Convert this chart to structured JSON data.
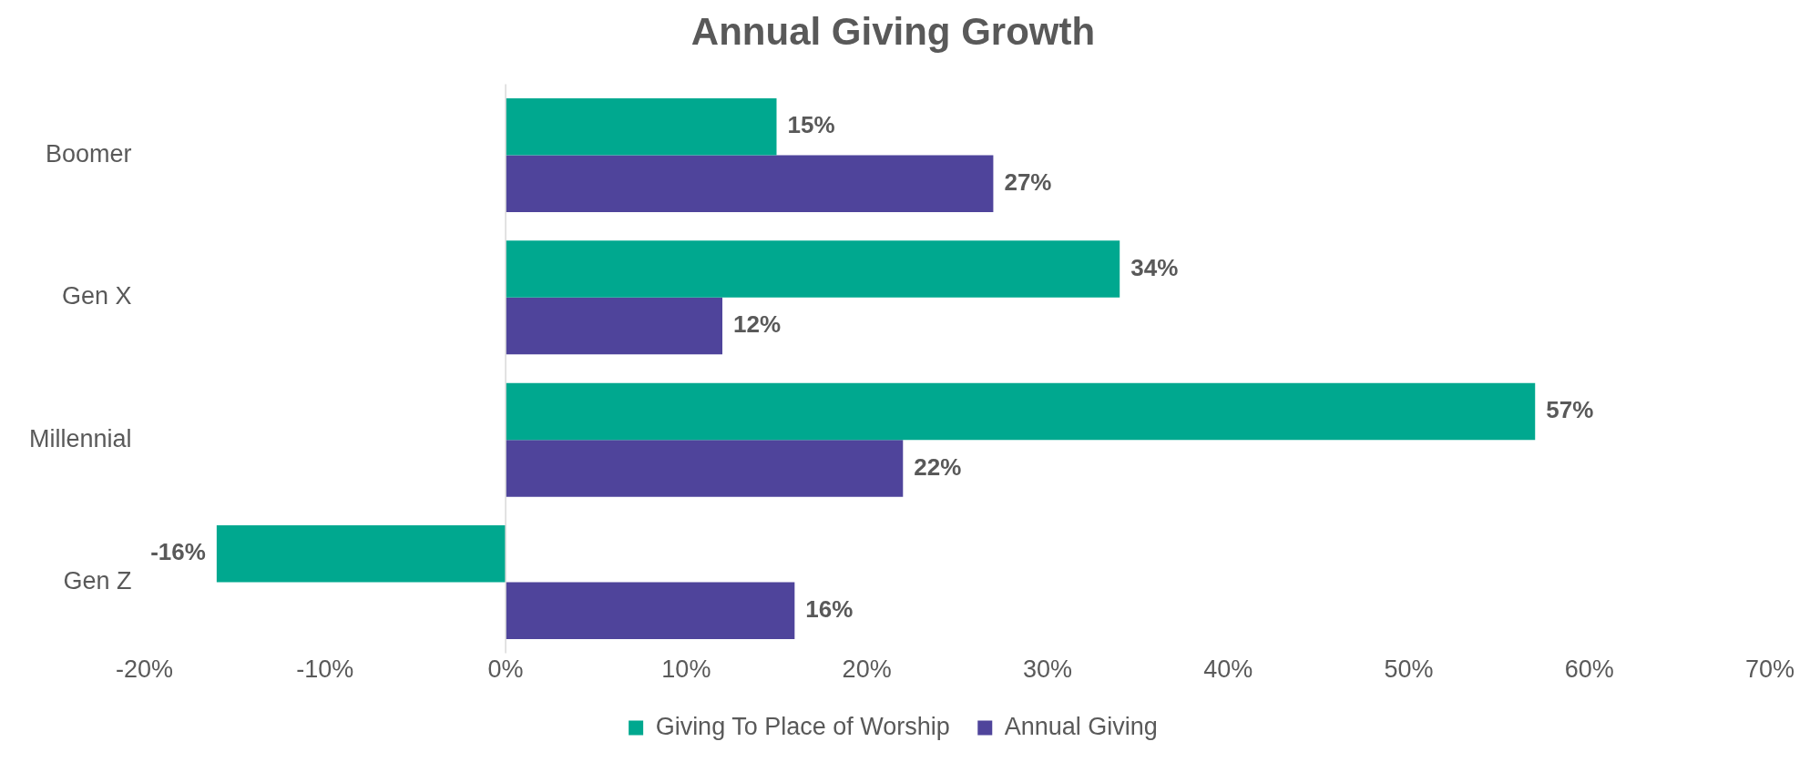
{
  "chart_data": {
    "type": "bar",
    "title": "Annual Giving Growth",
    "orientation": "horizontal",
    "categories": [
      "Boomer",
      "Gen X",
      "Millennial",
      "Gen Z"
    ],
    "series": [
      {
        "name": "Giving To Place of Worship",
        "color": "#00a88f",
        "values": [
          15,
          34,
          57,
          -16
        ],
        "value_labels": [
          "15%",
          "34%",
          "57%",
          "-16%"
        ]
      },
      {
        "name": "Annual Giving",
        "color": "#4f449b",
        "values": [
          27,
          12,
          22,
          16
        ],
        "value_labels": [
          "27%",
          "12%",
          "22%",
          "16%"
        ]
      }
    ],
    "xlim": [
      -20,
      70
    ],
    "xticks": [
      {
        "value": -20,
        "label": "-20%"
      },
      {
        "value": -10,
        "label": "-10%"
      },
      {
        "value": 0,
        "label": "0%"
      },
      {
        "value": 10,
        "label": "10%"
      },
      {
        "value": 20,
        "label": "20%"
      },
      {
        "value": 30,
        "label": "30%"
      },
      {
        "value": 40,
        "label": "40%"
      },
      {
        "value": 50,
        "label": "50%"
      },
      {
        "value": 60,
        "label": "60%"
      },
      {
        "value": 70,
        "label": "70%"
      }
    ],
    "ref_lines": [
      {
        "axis": "x",
        "value": 0,
        "color": "#d9d9d9"
      }
    ],
    "legend": "bottom"
  }
}
